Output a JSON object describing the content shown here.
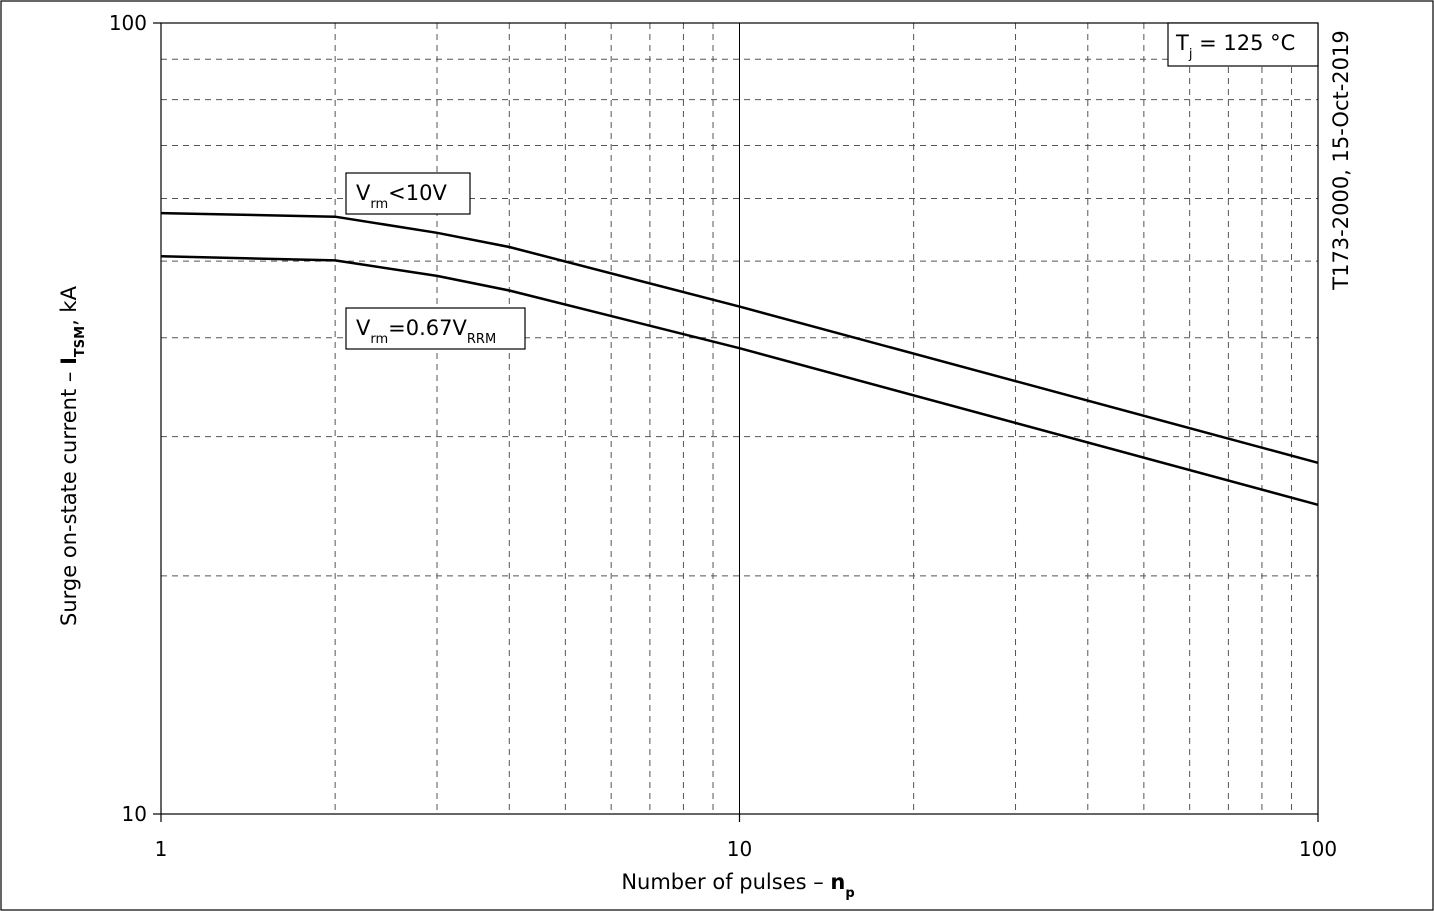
{
  "chart_data": {
    "type": "line",
    "xscale": "log",
    "yscale": "log",
    "xlim": [
      1,
      100
    ],
    "ylim": [
      10,
      100
    ],
    "grid": true,
    "x_ticks": [
      "1",
      "10",
      "100"
    ],
    "y_ticks": [
      "10",
      "100"
    ],
    "xlabel": {
      "main": "Number of pulses – ",
      "symbol": "n",
      "subscript": "p"
    },
    "ylabel": {
      "main": "Surge on-state current – ",
      "symbol": "I",
      "subscript": "TSM",
      "unit": ", kA"
    },
    "document_id": "T173-2000, 15-Oct-2019",
    "condition": {
      "symbol": "T",
      "subscript": "j",
      "text": " = 125 °C"
    },
    "series": [
      {
        "label_parts": [
          {
            "t": "V",
            "sub": false
          },
          {
            "t": "rm",
            "sub": true
          },
          {
            "t": "<10V",
            "sub": false
          }
        ],
        "x": [
          1,
          2,
          3,
          4,
          10,
          100
        ],
        "y": [
          57.5,
          56.9,
          54.3,
          52.1,
          43.8,
          27.8
        ]
      },
      {
        "label_parts": [
          {
            "t": "V",
            "sub": false
          },
          {
            "t": "rm",
            "sub": true
          },
          {
            "t": "=0.67V",
            "sub": false
          },
          {
            "t": "RRM",
            "sub": true
          }
        ],
        "x": [
          1,
          2,
          3,
          4,
          10,
          100
        ],
        "y": [
          50.7,
          50.1,
          47.9,
          45.9,
          38.8,
          24.6
        ]
      }
    ]
  }
}
